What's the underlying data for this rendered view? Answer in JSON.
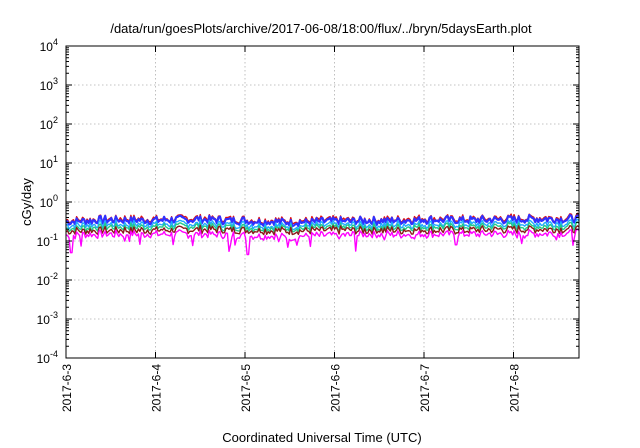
{
  "chart_data": {
    "type": "line",
    "title": "/data/run/goesPlots/archive/2017-06-08/18:00/flux/../bryn/5daysEarth.plot",
    "xlabel": "Coordinated Universal Time (UTC)",
    "ylabel": "cGy/day",
    "yscale": "log",
    "ylim": [
      0.0001,
      10000
    ],
    "xlim": [
      "2017-06-03",
      "2017-06-08 18:00"
    ],
    "grid": true,
    "legend": "none",
    "y_ticks": [
      {
        "value": 0.0001,
        "base": "10",
        "exp": "-4"
      },
      {
        "value": 0.001,
        "base": "10",
        "exp": "-3"
      },
      {
        "value": 0.01,
        "base": "10",
        "exp": "-2"
      },
      {
        "value": 0.1,
        "base": "10",
        "exp": "-1"
      },
      {
        "value": 1,
        "base": "10",
        "exp": "0"
      },
      {
        "value": 10,
        "base": "10",
        "exp": "1"
      },
      {
        "value": 100,
        "base": "10",
        "exp": "2"
      },
      {
        "value": 1000,
        "base": "10",
        "exp": "3"
      },
      {
        "value": 10000,
        "base": "10",
        "exp": "4"
      }
    ],
    "x_ticks": [
      "2017-6-3",
      "2017-6-4",
      "2017-6-5",
      "2017-6-6",
      "2017-6-7",
      "2017-6-8"
    ],
    "x": [
      "2017-06-03",
      "2017-06-03 12:00",
      "2017-06-04",
      "2017-06-04 12:00",
      "2017-06-05",
      "2017-06-05 12:00",
      "2017-06-06",
      "2017-06-06 12:00",
      "2017-06-07",
      "2017-06-07 12:00",
      "2017-06-08",
      "2017-06-08 18:00"
    ],
    "series": [
      {
        "color": "#e01010",
        "values": [
          0.34,
          0.38,
          0.37,
          0.39,
          0.36,
          0.33,
          0.35,
          0.36,
          0.38,
          0.37,
          0.39,
          0.4
        ]
      },
      {
        "color": "#3030ff",
        "values": [
          0.31,
          0.35,
          0.34,
          0.36,
          0.33,
          0.3,
          0.32,
          0.33,
          0.35,
          0.34,
          0.36,
          0.37
        ]
      },
      {
        "color": "#1faaff",
        "values": [
          0.25,
          0.27,
          0.27,
          0.28,
          0.26,
          0.24,
          0.26,
          0.26,
          0.27,
          0.27,
          0.28,
          0.29
        ]
      },
      {
        "color": "#22cc88",
        "values": [
          0.21,
          0.23,
          0.23,
          0.24,
          0.22,
          0.21,
          0.22,
          0.22,
          0.23,
          0.23,
          0.24,
          0.24
        ]
      },
      {
        "color": "#8b1a1a",
        "values": [
          0.18,
          0.19,
          0.19,
          0.2,
          0.19,
          0.18,
          0.19,
          0.19,
          0.19,
          0.19,
          0.2,
          0.2
        ]
      },
      {
        "color": "#ff00ff",
        "values": [
          0.14,
          0.15,
          0.15,
          0.15,
          0.14,
          0.13,
          0.14,
          0.15,
          0.15,
          0.15,
          0.15,
          0.16
        ]
      }
    ],
    "dips": [
      {
        "x": "2017-06-03 01:30",
        "min": 0.05
      },
      {
        "x": "2017-06-05 01:00",
        "min": 0.045
      },
      {
        "x": "2017-06-06 06:00",
        "min": 0.055
      },
      {
        "x": "2017-06-04 20:00",
        "min": 0.08
      },
      {
        "x": "2017-06-07 09:00",
        "min": 0.08
      }
    ]
  }
}
